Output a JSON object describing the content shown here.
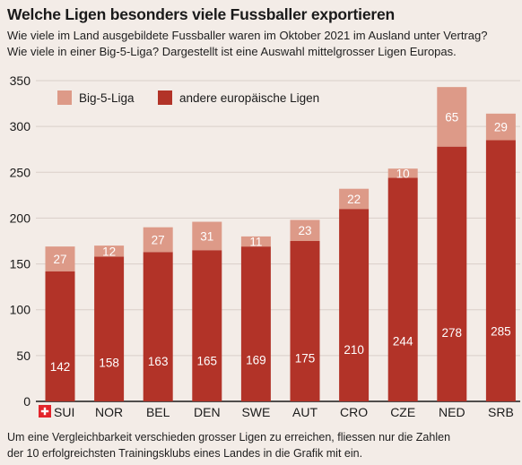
{
  "title": "Welche Ligen besonders viele Fussballer exportieren",
  "subtitle_lines": [
    "Wie viele im Land ausgebildete Fussballer waren im Oktober 2021 im Ausland unter Vertrag?",
    "Wie viele in einer Big-5-Liga? Dargestellt ist eine Auswahl mittelgrosser Ligen Europas."
  ],
  "footnote_lines": [
    "Um eine Vergleichbarkeit verschieden grosser Ligen zu erreichen, fliessen nur die Zahlen",
    "der 10 erfolgreichsten Trainingsklubs eines Landes in die Grafik mit ein."
  ],
  "colors": {
    "big5": "#dd9a88",
    "other": "#b23328",
    "background": "#f3ece7",
    "grid": "#d9cfc9",
    "flag": "#e3242b"
  },
  "chart_data": {
    "type": "bar",
    "stacked": true,
    "categories": [
      "SUI",
      "NOR",
      "BEL",
      "DEN",
      "SWE",
      "AUT",
      "CRO",
      "CZE",
      "NED",
      "SRB"
    ],
    "flag_category": "SUI",
    "series": [
      {
        "name": "andere europäische Ligen",
        "color": "#b23328",
        "values": [
          142,
          158,
          163,
          165,
          169,
          175,
          210,
          244,
          278,
          285
        ]
      },
      {
        "name": "Big-5-Liga",
        "color": "#dd9a88",
        "values": [
          27,
          12,
          27,
          31,
          11,
          23,
          22,
          10,
          65,
          29
        ]
      }
    ],
    "legend_order": [
      "Big-5-Liga",
      "andere europäische Ligen"
    ],
    "legend_position": "top-left",
    "ylim": [
      0,
      350
    ],
    "yticks": [
      0,
      50,
      100,
      150,
      200,
      250,
      300,
      350
    ],
    "grid": true,
    "xlabel": "",
    "ylabel": ""
  }
}
